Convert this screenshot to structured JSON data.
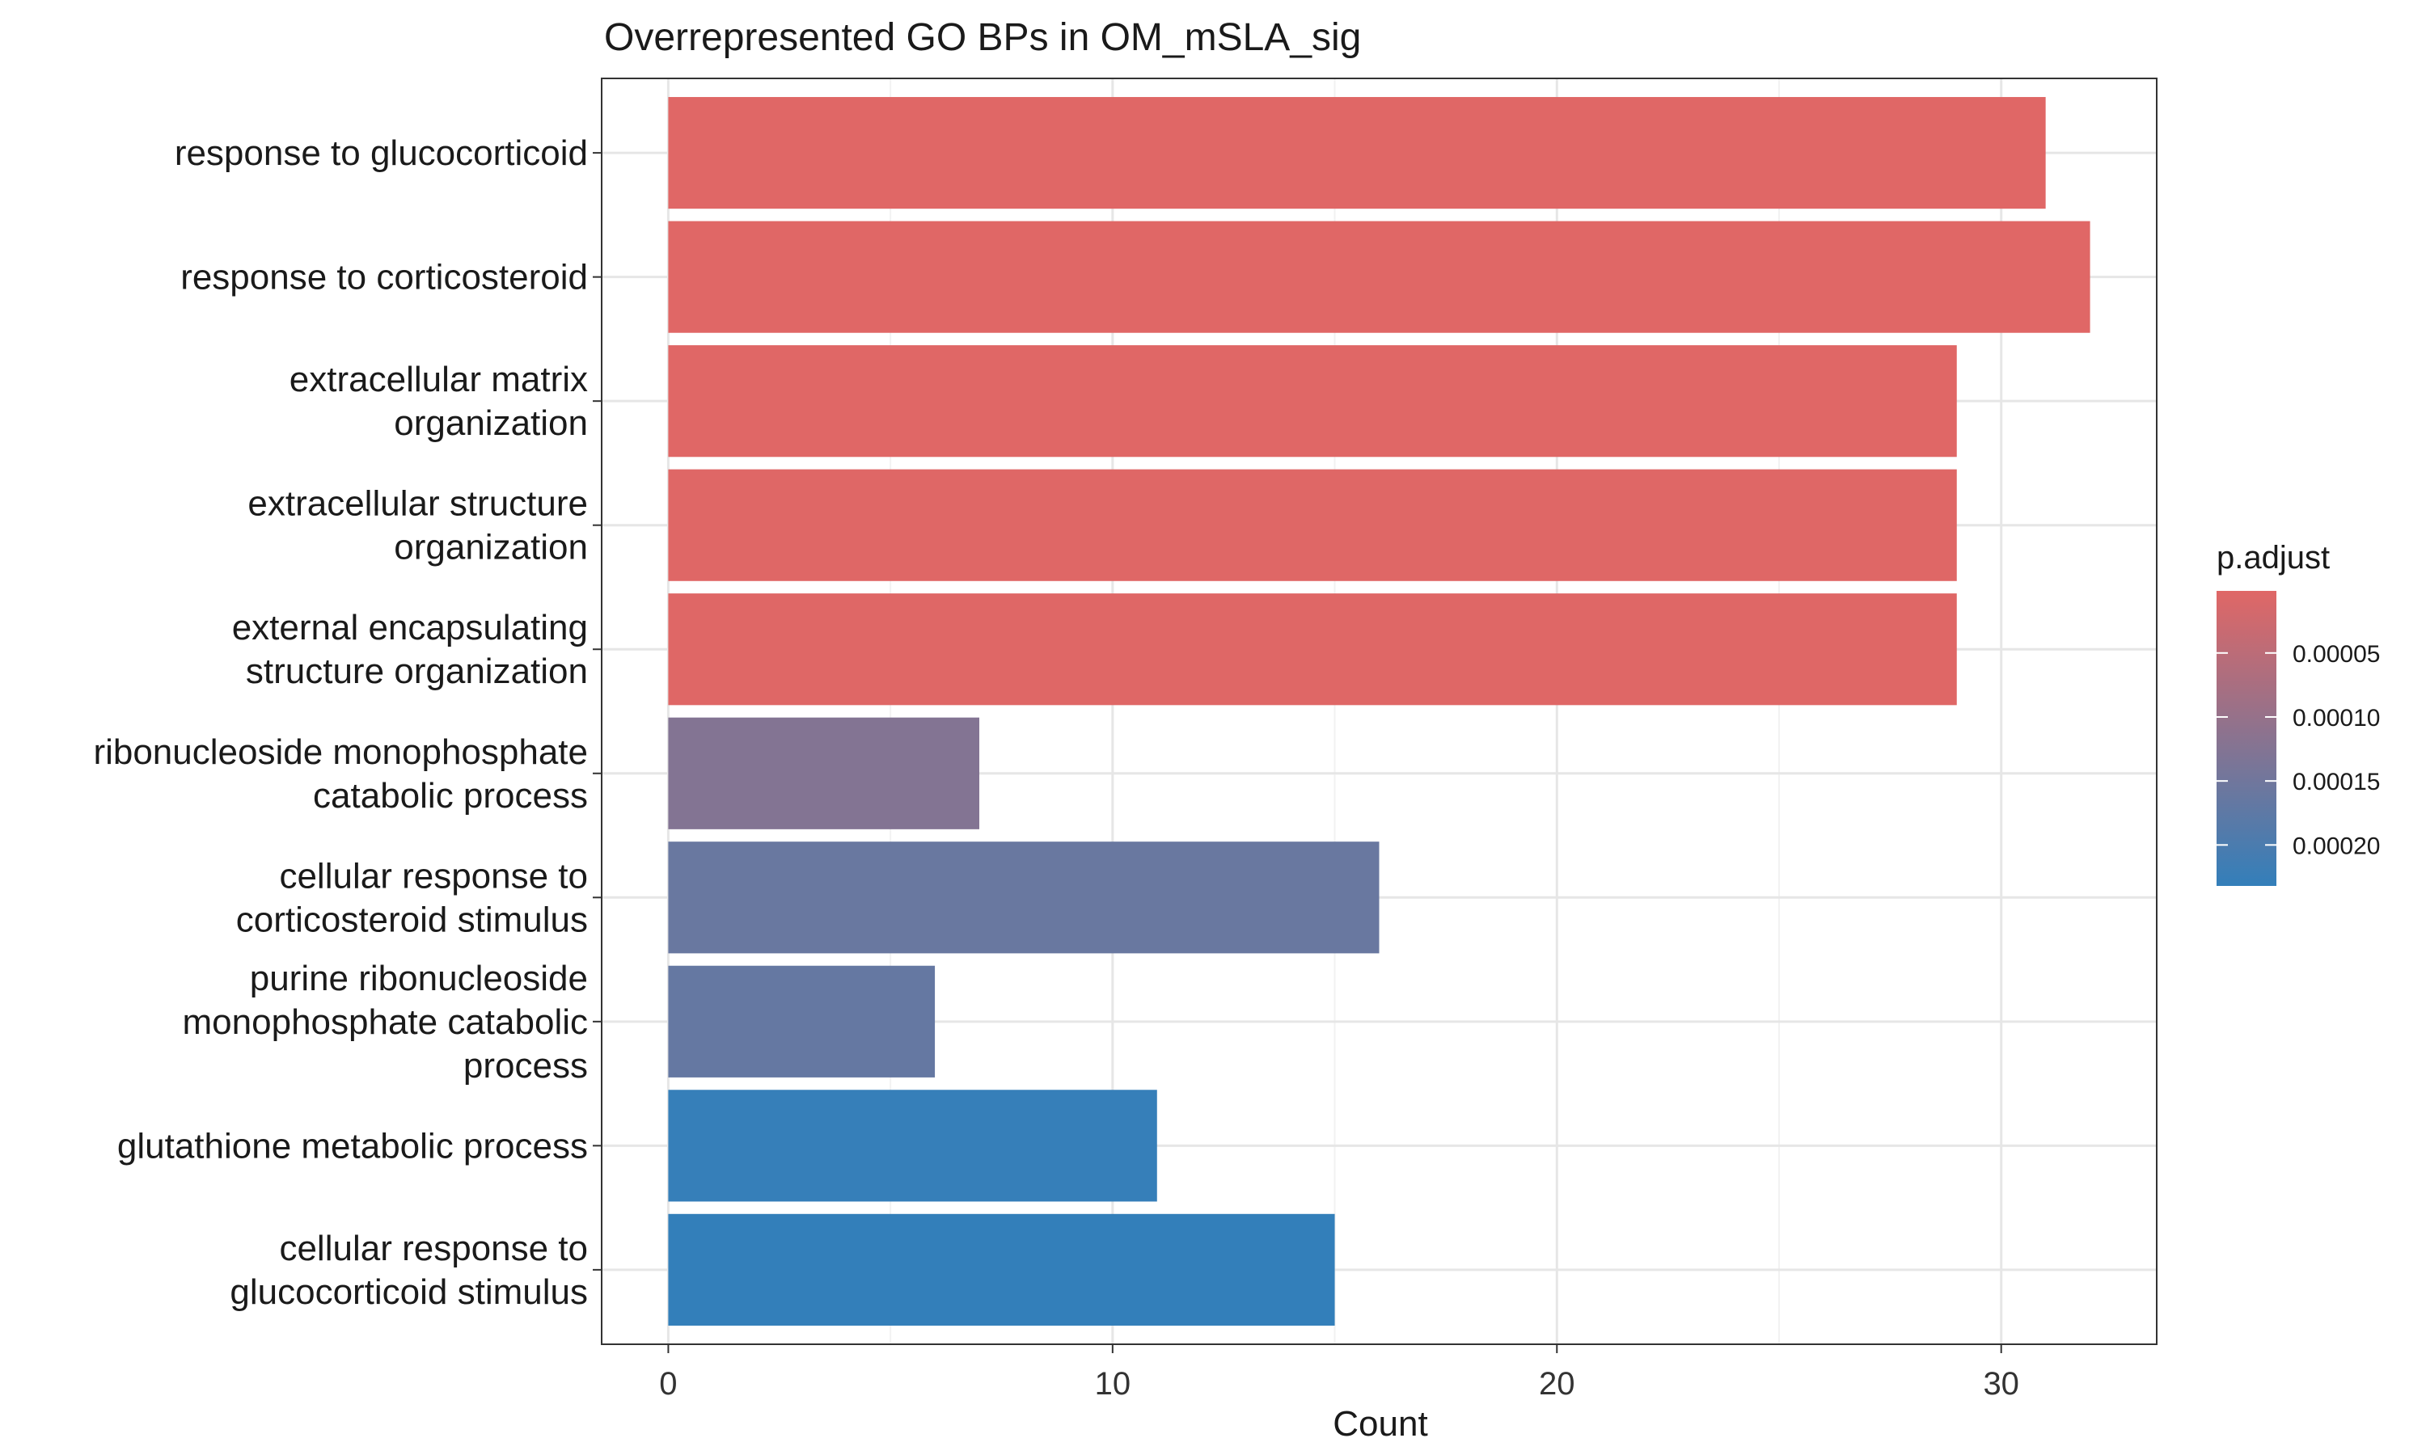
{
  "chart_data": {
    "type": "bar",
    "orientation": "horizontal",
    "title": "Overrepresented GO BPs in OM_mSLA_sig",
    "xlabel": "Count",
    "ylabel": "",
    "xlim": [
      -1.5,
      33.5
    ],
    "x_ticks": [
      0,
      10,
      20,
      30
    ],
    "x_tick_labels": [
      "0",
      "10",
      "20",
      "30"
    ],
    "grid": true,
    "categories": [
      [
        "response to glucocorticoid"
      ],
      [
        "response to corticosteroid"
      ],
      [
        "extracellular matrix",
        "organization"
      ],
      [
        "extracellular structure",
        "organization"
      ],
      [
        "external encapsulating",
        "structure organization"
      ],
      [
        "ribonucleoside monophosphate",
        "catabolic process"
      ],
      [
        "cellular response to",
        "corticosteroid stimulus"
      ],
      [
        "purine ribonucleoside",
        "monophosphate catabolic",
        "process"
      ],
      [
        "glutathione metabolic process"
      ],
      [
        "cellular response to",
        "glucocorticoid stimulus"
      ]
    ],
    "values": [
      31,
      32,
      29,
      29,
      29,
      7,
      16,
      6,
      11,
      15
    ],
    "p_adjust": [
      1.5e-06,
      1.8e-06,
      2e-06,
      2.2e-06,
      2.5e-06,
      0.000125,
      0.00016,
      0.000165,
      0.000228,
      0.000232
    ],
    "legend": {
      "title": "p.adjust",
      "position": "right",
      "color_low": "#E06766",
      "color_high": "#337FBA",
      "range": [
        1.5e-06,
        0.000232
      ],
      "ticks": [
        5e-05,
        0.0001,
        0.00015,
        0.0002
      ],
      "tick_labels": [
        "0.00005",
        "0.00010",
        "0.00015",
        "0.00020"
      ]
    }
  }
}
